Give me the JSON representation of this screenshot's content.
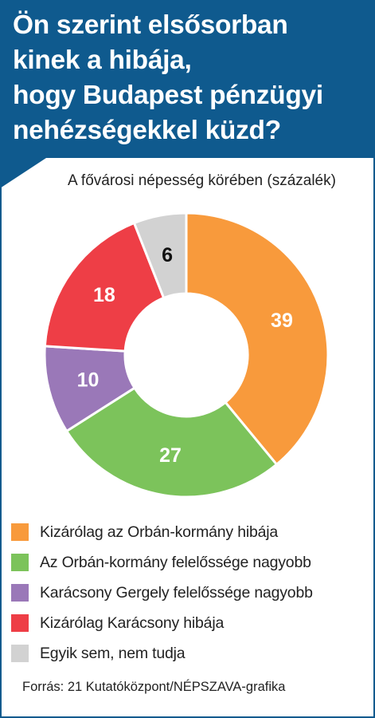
{
  "header": {
    "title_lines": [
      "Ön szerint elsősorban",
      "kinek a hibája,",
      "hogy Budapest pénzügyi",
      "nehézségekkel küzd?"
    ]
  },
  "subtitle": "A fővárosi népesség körében (százalék)",
  "source": "Forrás: 21 Kutatóközpont/NÉPSZAVA-grafika",
  "chart_data": {
    "type": "pie",
    "variant": "donut",
    "title": "Ön szerint elsősorban kinek a hibája, hogy Budapest pénzügyi nehézségekkel küzd?",
    "subtitle": "A fővárosi népesség körében (százalék)",
    "categories": [
      "Kizárólag az Orbán-kormány hibája",
      "Az Orbán-kormány felelőssége nagyobb",
      "Karácsony Gergely felelőssége nagyobb",
      "Kizárólag Karácsony hibája",
      "Egyik sem, nem tudja"
    ],
    "values": [
      39,
      27,
      10,
      18,
      6
    ],
    "labels": [
      "39",
      "27",
      "10",
      "18",
      "6"
    ],
    "colors": [
      "#f89a3c",
      "#7cc35b",
      "#9a78b8",
      "#ee3e46",
      "#d2d2d2"
    ],
    "label_colors": [
      "#ffffff",
      "#ffffff",
      "#ffffff",
      "#ffffff",
      "#111111"
    ],
    "start_angle_deg": 0,
    "direction": "clockwise",
    "legend_position": "bottom"
  }
}
